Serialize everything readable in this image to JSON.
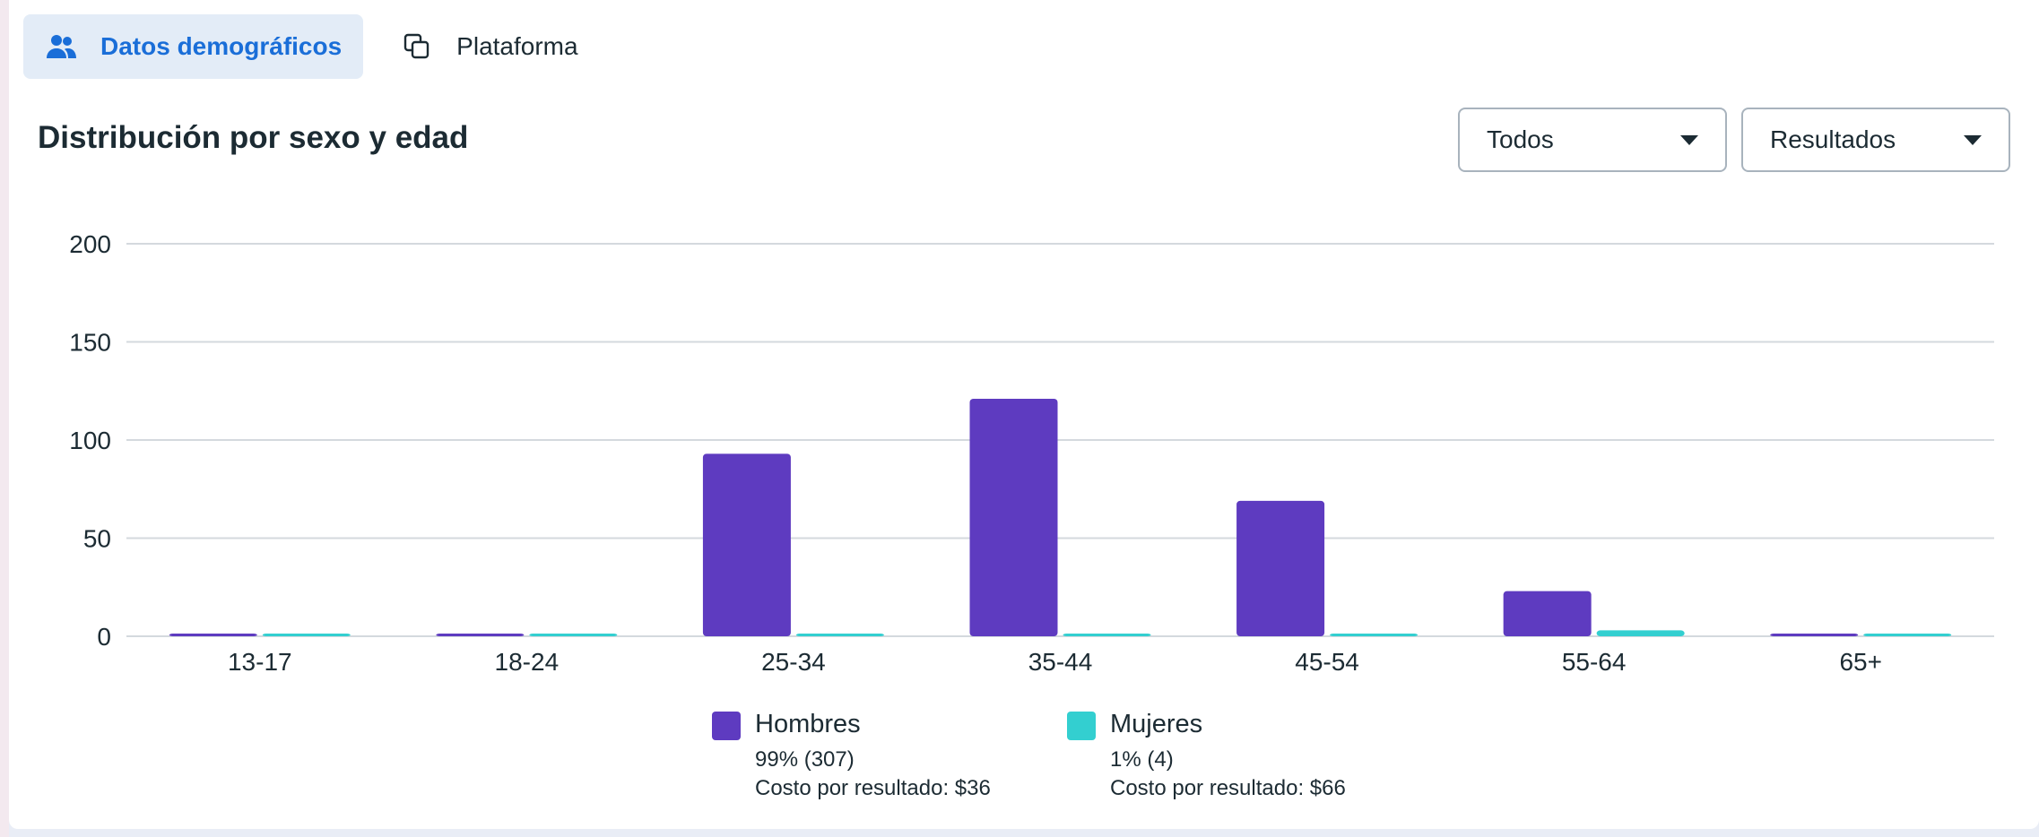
{
  "tabs": [
    {
      "label": "Datos demográficos",
      "icon": "people-icon",
      "active": true
    },
    {
      "label": "Plataforma",
      "icon": "platform-icon",
      "active": false
    }
  ],
  "title": "Distribución por sexo y edad",
  "filters": {
    "audience": {
      "label": "Todos"
    },
    "metric": {
      "label": "Resultados"
    }
  },
  "colors": {
    "accent": "#1a6ed8",
    "men": "#5e3bc0",
    "women": "#33cfd0",
    "grid": "#d4d9de"
  },
  "chart_data": {
    "type": "bar",
    "categories": [
      "13-17",
      "18-24",
      "25-34",
      "35-44",
      "45-54",
      "55-64",
      "65+"
    ],
    "series": [
      {
        "name": "Hombres",
        "values": [
          0,
          0,
          93,
          121,
          69,
          23,
          0
        ]
      },
      {
        "name": "Mujeres",
        "values": [
          0,
          0,
          0,
          0,
          0,
          3,
          0
        ]
      }
    ],
    "yticks": [
      0,
      50,
      100,
      150,
      200
    ],
    "ylim": [
      0,
      200
    ],
    "grid": true,
    "legend_position": "bottom"
  },
  "legend": [
    {
      "name": "Hombres",
      "pct": "99% (307)",
      "cost": "Costo por resultado: $36"
    },
    {
      "name": "Mujeres",
      "pct": "1% (4)",
      "cost": "Costo por resultado: $66"
    }
  ]
}
